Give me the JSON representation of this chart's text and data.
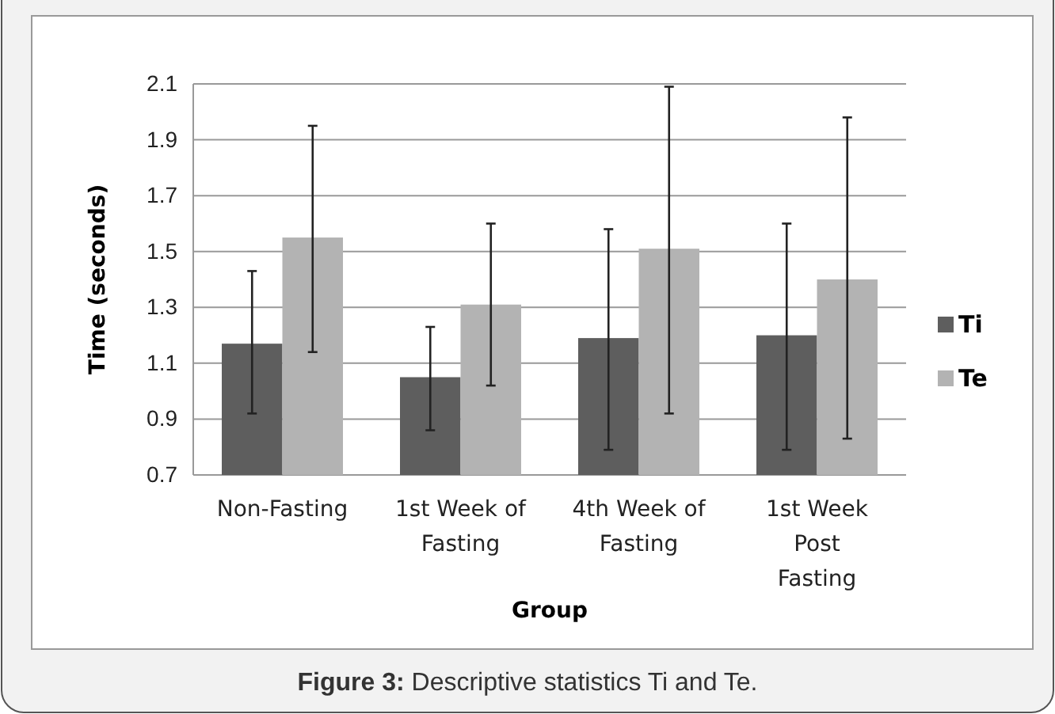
{
  "chart_data": {
    "type": "bar",
    "xlabel": "Group",
    "ylabel": "Time (seconds)",
    "categories": [
      "Non-Fasting",
      "1st Week of Fasting",
      "4th Week of Fasting",
      "1st Week Post Fasting"
    ],
    "series": [
      {
        "name": "Ti",
        "color": "#5e5e5e",
        "values": [
          1.17,
          1.05,
          1.19,
          1.2
        ],
        "errors": [
          [
            0.92,
            1.43
          ],
          [
            0.86,
            1.23
          ],
          [
            0.79,
            1.58
          ],
          [
            0.79,
            1.6
          ]
        ]
      },
      {
        "name": "Te",
        "color": "#b3b3b3",
        "values": [
          1.55,
          1.31,
          1.51,
          1.4
        ],
        "errors": [
          [
            1.14,
            1.95
          ],
          [
            1.02,
            1.6
          ],
          [
            0.92,
            2.09
          ],
          [
            0.83,
            1.98
          ]
        ]
      }
    ],
    "ylim": [
      0.7,
      2.1
    ],
    "yticks": [
      0.7,
      0.9,
      1.1,
      1.3,
      1.5,
      1.7,
      1.9,
      2.1
    ],
    "grid": "y",
    "legend": "right",
    "annotations": [
      "Figure 3: Descriptive statistics Ti and Te."
    ]
  }
}
